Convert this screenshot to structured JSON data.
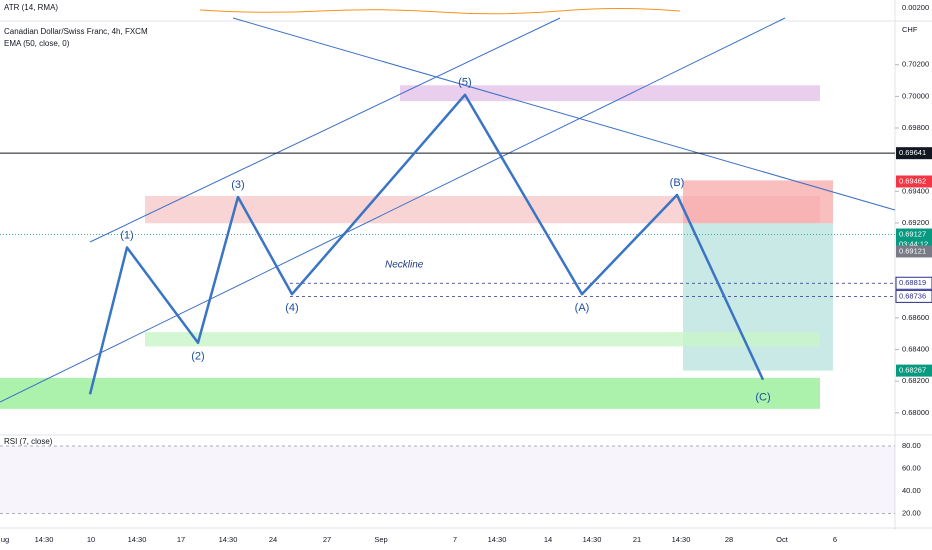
{
  "indicators": {
    "atr": "ATR (14, RMA)",
    "atr_value": "0.00200",
    "symbol": "Canadian Dollar/Swiss Franc, 4h, FXCM",
    "ema": "EMA (50, close, 0)",
    "rsi": "RSI (7, close)"
  },
  "currency": "CHF",
  "price_axis": {
    "ylim": [
      0.6786,
      0.7047
    ],
    "ticks": [
      {
        "value": 0.702,
        "label": "0.70200"
      },
      {
        "value": 0.7,
        "label": "0.70000"
      },
      {
        "value": 0.698,
        "label": "0.69800"
      },
      {
        "value": 0.694,
        "label": "0.69400"
      },
      {
        "value": 0.692,
        "label": "0.69200"
      },
      {
        "value": 0.686,
        "label": "0.68600"
      },
      {
        "value": 0.684,
        "label": "0.68400"
      },
      {
        "value": 0.682,
        "label": "0.68200"
      },
      {
        "value": 0.68,
        "label": "0.68000"
      }
    ]
  },
  "price_badges": [
    {
      "value": 0.69641,
      "label": "0.69641",
      "color": "#131722"
    },
    {
      "value": 0.69462,
      "label": "0.69462",
      "color": "#f23645"
    },
    {
      "value": 0.69127,
      "label": "0.69127",
      "color": "#089981"
    },
    {
      "value": 0.69121,
      "label": "0.69121",
      "color": "#787b86"
    },
    {
      "value": 0.68819,
      "label": "0.68819",
      "color": "#2a2e8a"
    },
    {
      "value": 0.68736,
      "label": "0.68736",
      "color": "#2a2e8a"
    },
    {
      "value": 0.68267,
      "label": "0.68267",
      "color": "#089981"
    }
  ],
  "countdown": "03:44:12",
  "time_axis": [
    "ug",
    "14:30",
    "10",
    "14:30",
    "17",
    "14:30",
    "24",
    "27",
    "Sep",
    "7",
    "14:30",
    "14",
    "14:30",
    "21",
    "14:30",
    "28",
    "Oct",
    "6"
  ],
  "wave_start_price": 0.68117,
  "waves": [
    {
      "label": "(1)",
      "price": 0.69045
    },
    {
      "label": "(2)",
      "price": 0.68443
    },
    {
      "label": "(3)",
      "price": 0.69364
    },
    {
      "label": "(4)",
      "price": 0.6875
    },
    {
      "label": "(5)",
      "price": 0.7001
    },
    {
      "label": "(A)",
      "price": 0.6875
    },
    {
      "label": "(B)",
      "price": 0.69377
    },
    {
      "label": "(C)",
      "price": 0.68209
    }
  ],
  "neckline": "Neckline",
  "zones": [
    {
      "top": 0.7007,
      "bottom": 0.6997,
      "color": "#e1bee7"
    },
    {
      "top": 0.6937,
      "bottom": 0.69198,
      "color": "#f8c9c9"
    },
    {
      "top": 0.69469,
      "bottom": 0.69198,
      "color": "#f7a9a9"
    },
    {
      "top": 0.69198,
      "bottom": 0.68267,
      "color": "#b2dfdb"
    },
    {
      "top": 0.6851,
      "bottom": 0.6842,
      "color": "#c8f5c8"
    },
    {
      "top": 0.68221,
      "bottom": 0.68025,
      "color": "#90ee90"
    }
  ],
  "rsi_axis": {
    "ylim": [
      8,
      88
    ],
    "ticks": [
      {
        "value": 80,
        "label": "80.00"
      },
      {
        "value": 60,
        "label": "60.00"
      },
      {
        "value": 40,
        "label": "40.00"
      },
      {
        "value": 20,
        "label": "20.00"
      }
    ]
  }
}
